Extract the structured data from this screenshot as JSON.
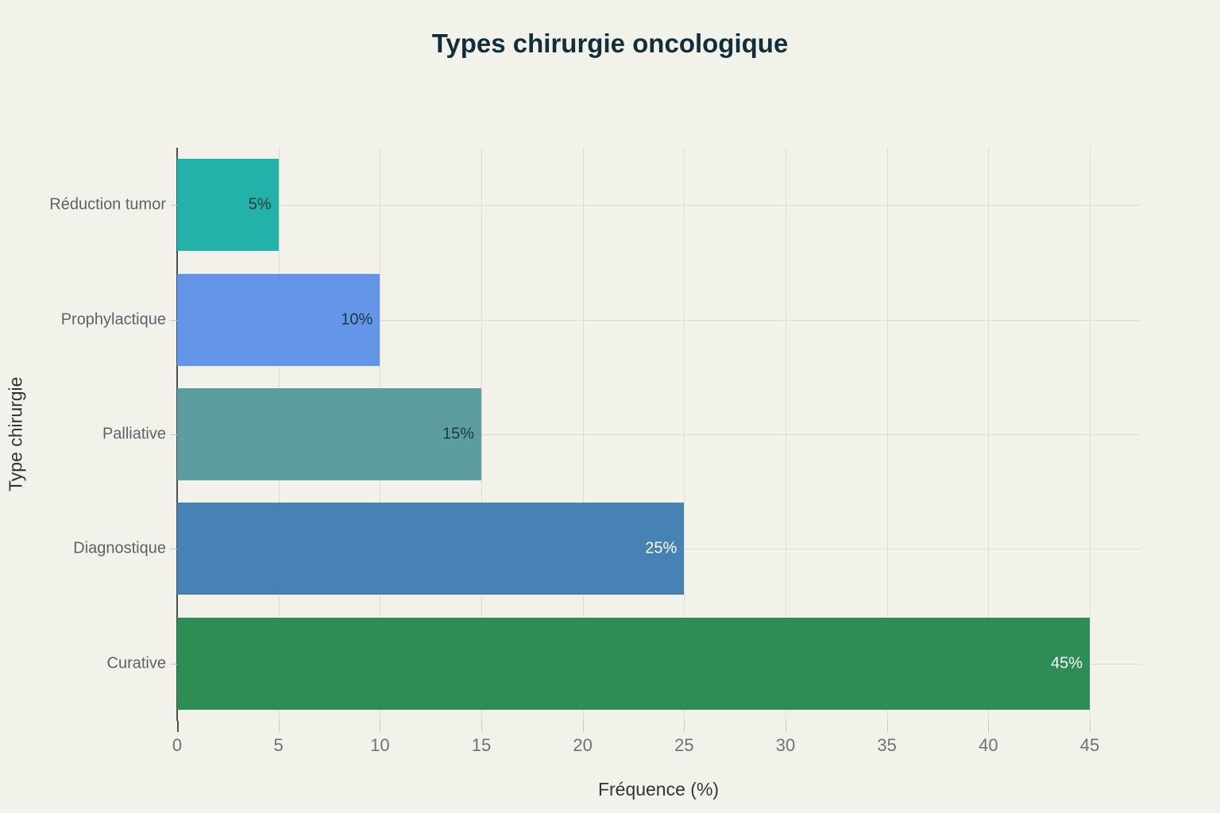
{
  "chart_data": {
    "type": "bar",
    "orientation": "horizontal",
    "title": "Types chirurgie oncologique",
    "xlabel": "Fréquence (%)",
    "ylabel": "Type chirurgie",
    "categories": [
      "Réduction tumor",
      "Prophylactique",
      "Palliative",
      "Diagnostique",
      "Curative"
    ],
    "values": [
      5,
      10,
      15,
      25,
      45
    ],
    "value_labels": [
      "5%",
      "10%",
      "15%",
      "25%",
      "45%"
    ],
    "bar_colors": [
      "#22b2a9",
      "#6495e8",
      "#5c9da0",
      "#4682b4",
      "#2e8c55"
    ],
    "value_label_colors": [
      "#21393d",
      "#21393d",
      "#21393d",
      "#ffffff",
      "#ffffff"
    ],
    "x_ticks": [
      0,
      5,
      10,
      15,
      20,
      25,
      30,
      35,
      40,
      45
    ],
    "xlim": [
      0,
      47.5
    ],
    "grid": true,
    "legend": "none",
    "colors": {
      "background": "#f2f2eb",
      "title": "#112e3b",
      "grid": "#dedcd4",
      "axis_line": "#4a4f52",
      "tick": "#c9c8c0",
      "tick_label": "#6e7377",
      "category_label": "#5b6268",
      "axis_title": "#2c3639"
    }
  }
}
